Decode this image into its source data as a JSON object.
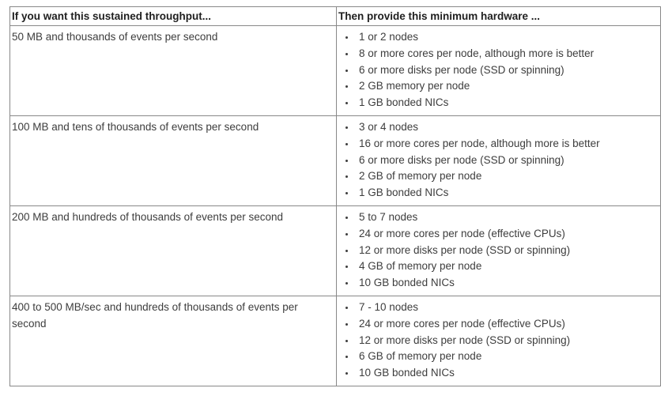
{
  "colors": {
    "border": "#888888",
    "body_text": "#3d3d3d",
    "header_text": "#1f1f1f",
    "background": "#ffffff"
  },
  "table": {
    "headers": [
      "If you want this sustained throughput...",
      "Then provide this minimum hardware ..."
    ],
    "rows": [
      {
        "throughput": "50 MB and thousands of events per second",
        "hardware": [
          "1 or 2 nodes",
          "8 or more cores per node, although more is better",
          "6 or more disks per node (SSD or spinning)",
          "2 GB memory per node",
          "1 GB bonded NICs"
        ]
      },
      {
        "throughput": "100 MB and tens of thousands of events per second",
        "hardware": [
          "3 or 4 nodes",
          "16 or more cores per node, although more is better",
          "6 or more disks per node (SSD or spinning)",
          "2 GB of memory per node",
          "1 GB bonded NICs"
        ]
      },
      {
        "throughput": "200 MB and hundreds of thousands of events per second",
        "hardware": [
          "5 to 7 nodes",
          "24 or more cores per node (effective CPUs)",
          "12 or more disks per node (SSD or spinning)",
          "4 GB of memory per node",
          "10 GB bonded NICs"
        ]
      },
      {
        "throughput": "400 to 500 MB/sec and hundreds of thousands of events per second",
        "hardware": [
          "7 - 10 nodes",
          "24 or more cores per node (effective CPUs)",
          "12 or more disks per node (SSD or spinning)",
          "6 GB of memory per node",
          "10 GB bonded NICs"
        ]
      }
    ]
  }
}
